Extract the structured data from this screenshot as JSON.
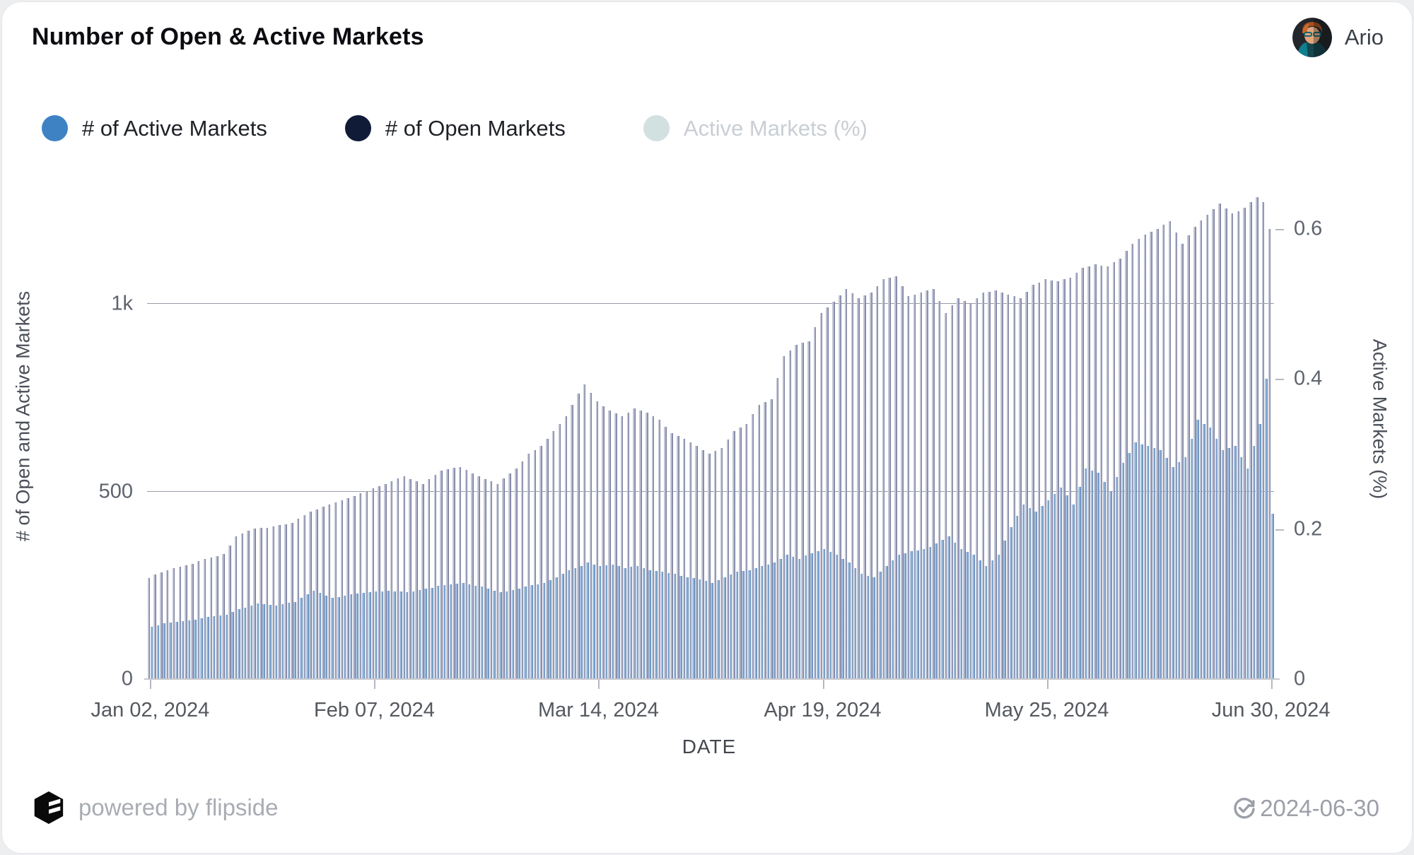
{
  "header": {
    "title": "Number of Open & Active Markets",
    "user": "Ario"
  },
  "legend": [
    {
      "label": "# of Active Markets",
      "color": "#3e82c4",
      "disabled": false
    },
    {
      "label": "# of Open Markets",
      "color": "#101b38",
      "disabled": false
    },
    {
      "label": "Active Markets (%)",
      "color": "#d3e0e0",
      "disabled": true
    }
  ],
  "footer": {
    "powered_by": "powered by flipside",
    "date": "2024-06-30"
  },
  "chart_data": {
    "type": "bar",
    "title": "Number of Open & Active Markets",
    "xlabel": "DATE",
    "ylabel_left": "# of Open and Active Markets",
    "ylabel_right": "Active Markets (%)",
    "x_start": "2024-01-02",
    "x_end": "2024-06-30",
    "x_unit": "day",
    "ylim_left": [
      0,
      1400
    ],
    "ylim_right": [
      0,
      0.7
    ],
    "grid": "horizontal",
    "legend_position": "top-left",
    "yticks_left": [
      {
        "v": 0,
        "label": "0"
      },
      {
        "v": 500,
        "label": "500"
      },
      {
        "v": 1000,
        "label": "1k"
      }
    ],
    "yticks_right": [
      {
        "v": 0,
        "label": "0"
      },
      {
        "v": 0.2,
        "label": "0.2"
      },
      {
        "v": 0.4,
        "label": "0.4"
      },
      {
        "v": 0.6,
        "label": "0.6"
      }
    ],
    "xticks": [
      {
        "day_index": 0,
        "label": "Jan 02, 2024"
      },
      {
        "day_index": 36,
        "label": "Feb 07, 2024"
      },
      {
        "day_index": 72,
        "label": "Mar 14, 2024"
      },
      {
        "day_index": 108,
        "label": "Apr 19, 2024"
      },
      {
        "day_index": 144,
        "label": "May 25, 2024"
      },
      {
        "day_index": 180,
        "label": "Jun 30, 2024"
      }
    ],
    "series": [
      {
        "name": "# of Open Markets",
        "axis": "left",
        "color_gradient": [
          "#d4d6e1",
          "#5b628a"
        ],
        "values": [
          270,
          278,
          284,
          291,
          295,
          299,
          303,
          308,
          314,
          321,
          325,
          328,
          333,
          356,
          381,
          388,
          395,
          401,
          404,
          404,
          407,
          410,
          413,
          417,
          427,
          437,
          447,
          453,
          459,
          466,
          471,
          477,
          482,
          488,
          495,
          501,
          508,
          514,
          521,
          528,
          535,
          541,
          534,
          528,
          521,
          533,
          545,
          556,
          559,
          563,
          566,
          558,
          549,
          541,
          534,
          528,
          521,
          535,
          548,
          561,
          581,
          601,
          611,
          621,
          641,
          661,
          681,
          701,
          731,
          761,
          786,
          763,
          741,
          728,
          716,
          709,
          701,
          711,
          721,
          716,
          711,
          701,
          691,
          673,
          656,
          649,
          641,
          631,
          621,
          611,
          601,
          609,
          616,
          638,
          661,
          671,
          681,
          706,
          731,
          738,
          746,
          803,
          861,
          876,
          891,
          896,
          901,
          938,
          976,
          991,
          1006,
          1023,
          1041,
          1028,
          1016,
          1023,
          1031,
          1048,
          1066,
          1070,
          1074,
          1047,
          1021,
          1026,
          1031,
          1036,
          1041,
          1008,
          976,
          996,
          1016,
          1008,
          1001,
          1016,
          1031,
          1033,
          1036,
          1031,
          1026,
          1021,
          1016,
          1033,
          1051,
          1058,
          1066,
          1063,
          1061,
          1066,
          1071,
          1083,
          1096,
          1101,
          1106,
          1103,
          1101,
          1111,
          1121,
          1141,
          1161,
          1173,
          1186,
          1193,
          1201,
          1211,
          1221,
          1191,
          1161,
          1183,
          1206,
          1222,
          1238,
          1253,
          1269,
          1255,
          1241,
          1248,
          1256,
          1271,
          1286,
          1271,
          1201
        ]
      },
      {
        "name": "# of Active Markets",
        "axis": "left",
        "color_gradient": [
          "#b8cee7",
          "#4a79ae"
        ],
        "values": [
          140,
          144,
          148,
          151,
          153,
          154,
          156,
          159,
          163,
          166,
          168,
          169,
          171,
          179,
          186,
          191,
          196,
          201,
          199,
          198,
          196,
          199,
          203,
          206,
          216,
          226,
          236,
          229,
          223,
          216,
          219,
          223,
          226,
          228,
          229,
          231,
          233,
          234,
          236,
          234,
          233,
          231,
          234,
          238,
          241,
          244,
          248,
          251,
          253,
          254,
          256,
          253,
          249,
          246,
          241,
          236,
          231,
          234,
          238,
          241,
          246,
          251,
          253,
          256,
          263,
          271,
          281,
          291,
          296,
          301,
          311,
          306,
          301,
          303,
          306,
          301,
          296,
          299,
          301,
          296,
          291,
          289,
          286,
          283,
          281,
          276,
          271,
          269,
          266,
          261,
          256,
          263,
          271,
          279,
          286,
          289,
          291,
          296,
          301,
          306,
          311,
          321,
          331,
          326,
          321,
          329,
          336,
          341,
          346,
          339,
          331,
          321,
          311,
          296,
          281,
          276,
          271,
          286,
          301,
          316,
          331,
          336,
          341,
          343,
          346,
          353,
          361,
          371,
          381,
          363,
          346,
          339,
          331,
          316,
          301,
          316,
          331,
          369,
          406,
          436,
          466,
          456,
          446,
          461,
          476,
          493,
          511,
          489,
          466,
          513,
          561,
          556,
          551,
          526,
          501,
          539,
          576,
          603,
          631,
          626,
          621,
          616,
          611,
          589,
          566,
          579,
          591,
          641,
          691,
          681,
          671,
          641,
          611,
          616,
          621,
          591,
          561,
          621,
          681,
          801,
          441
        ]
      },
      {
        "name": "Active Markets (%)",
        "axis": "right",
        "hidden": true,
        "values": []
      }
    ]
  }
}
